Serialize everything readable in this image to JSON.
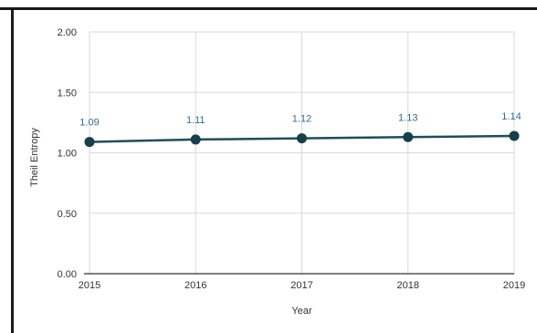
{
  "chart_data": {
    "type": "line",
    "title": "",
    "xlabel": "Year",
    "ylabel": "Theil Entropy",
    "x": [
      "2015",
      "2016",
      "2017",
      "2018",
      "2019"
    ],
    "series": [
      {
        "values": [
          1.09,
          1.11,
          1.12,
          1.13,
          1.14
        ]
      }
    ],
    "data_labels": [
      "1.09",
      "1.11",
      "1.12",
      "1.13",
      "1.14"
    ],
    "y_ticks": [
      "0.00",
      "0.50",
      "1.00",
      "1.50",
      "2.00"
    ],
    "ylim": [
      0,
      2
    ],
    "grid": true,
    "legend": "none",
    "colors": {
      "line": "#1d4e5c",
      "marker": "#163f4a",
      "label": "#2f6f8a",
      "grid": "#d9d9d9",
      "axis": "#333333"
    }
  }
}
